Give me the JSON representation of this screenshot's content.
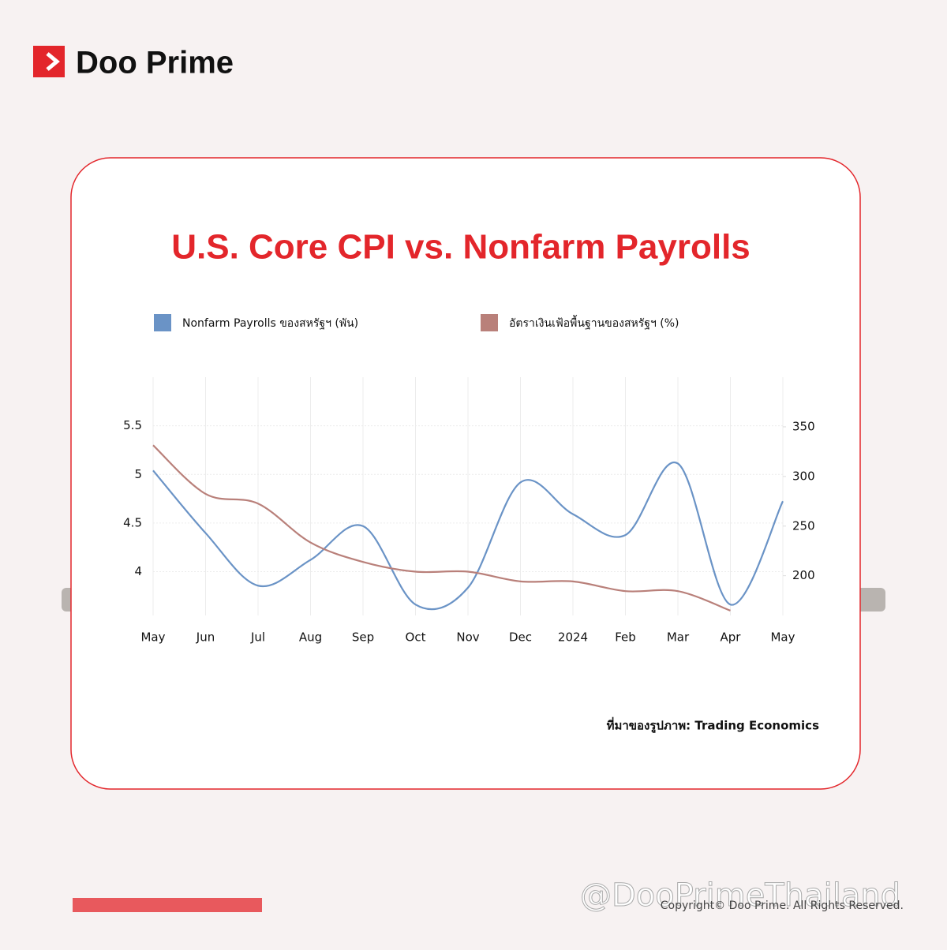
{
  "brand": "Doo Prime",
  "chart_data": {
    "type": "line",
    "title": "U.S. Core CPI vs. Nonfarm Payrolls",
    "categories": [
      "May",
      "Jun",
      "Jul",
      "Aug",
      "Sep",
      "Oct",
      "Nov",
      "Dec",
      "2024",
      "Feb",
      "Mar",
      "Apr",
      "May"
    ],
    "series": [
      {
        "name": "Nonfarm Payrolls ของสหรัฐฯ (พัน)",
        "color": "#6a93c6",
        "axis": "y2",
        "values": [
          306,
          243,
          190,
          216,
          250,
          171,
          188,
          294,
          262,
          241,
          313,
          171,
          275
        ]
      },
      {
        "name": "อัตราเงินเฟ้อพื้นฐานของสหรัฐฯ (%)",
        "color": "#b9807a",
        "values": [
          5.3,
          4.8,
          4.7,
          4.3,
          4.1,
          4.0,
          4.0,
          3.9,
          3.9,
          3.8,
          3.8,
          3.6,
          null
        ]
      }
    ],
    "ylim": [
      3.55,
      6.0
    ],
    "yticks": [
      4,
      4.5,
      5,
      5.5
    ],
    "y2lim": [
      160,
      400
    ],
    "y2ticks": [
      200,
      250,
      300,
      350
    ],
    "grid": true,
    "source": "ที่มาของรูปภาพ: Trading Economics"
  },
  "footer": {
    "handle": "@DooPrimeThailand",
    "copyright": "Copyright© Doo Prime. All Rights Reserved."
  }
}
